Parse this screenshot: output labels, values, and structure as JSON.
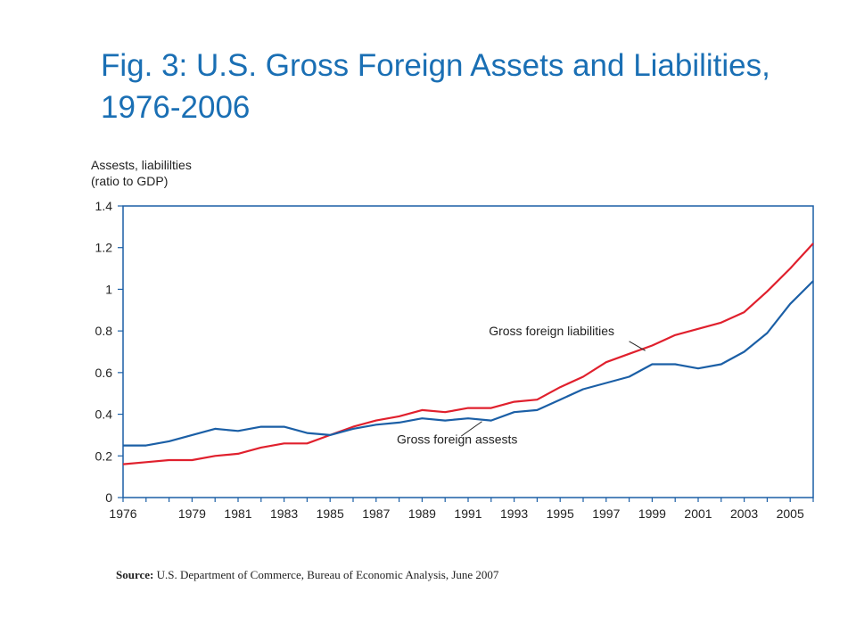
{
  "title": {
    "line1": "Fig. 3: U.S. Gross Foreign Assets and Liabilities,",
    "line2": "1976-2006"
  },
  "colors": {
    "title": "#1a6fb4",
    "assets": "#1b5fa6",
    "liabilities": "#e0202d",
    "frame": "#1b5fa6"
  },
  "source": {
    "label": "Source:",
    "text": "U.S. Department of Commerce, Bureau of Economic Analysis, June 2007"
  },
  "chart_data": {
    "type": "line",
    "ylabel": [
      "Assests, liabililties",
      "(ratio to GDP)"
    ],
    "xlabel": "",
    "xlim": [
      1976,
      2006
    ],
    "ylim": [
      0,
      1.4
    ],
    "x_ticks": [
      1976,
      1979,
      1981,
      1983,
      1985,
      1987,
      1989,
      1991,
      1993,
      1995,
      1997,
      1999,
      2001,
      2003,
      2005
    ],
    "y_ticks": [
      {
        "value": 0,
        "label": "0"
      },
      {
        "value": 0.2,
        "label": "0.2"
      },
      {
        "value": 0.4,
        "label": "0.4"
      },
      {
        "value": 0.6,
        "label": "0.6"
      },
      {
        "value": 0.8,
        "label": "0.8"
      },
      {
        "value": 1.0,
        "label": "1"
      },
      {
        "value": 1.2,
        "label": "1.2"
      },
      {
        "value": 1.4,
        "label": "1.4"
      }
    ],
    "grid": false,
    "series": [
      {
        "name": "Gross foreign liabilities",
        "color": "#e0202d",
        "x": [
          1976,
          1977,
          1978,
          1979,
          1980,
          1981,
          1982,
          1983,
          1984,
          1985,
          1986,
          1987,
          1988,
          1989,
          1990,
          1991,
          1992,
          1993,
          1994,
          1995,
          1996,
          1997,
          1998,
          1999,
          2000,
          2001,
          2002,
          2003,
          2004,
          2005,
          2006
        ],
        "y": [
          0.16,
          0.17,
          0.18,
          0.18,
          0.2,
          0.21,
          0.24,
          0.26,
          0.26,
          0.3,
          0.34,
          0.37,
          0.39,
          0.42,
          0.41,
          0.43,
          0.43,
          0.46,
          0.47,
          0.53,
          0.58,
          0.65,
          0.69,
          0.73,
          0.78,
          0.81,
          0.84,
          0.89,
          0.99,
          1.1,
          1.22
        ]
      },
      {
        "name": "Gross foreign assests",
        "color": "#1b5fa6",
        "x": [
          1976,
          1977,
          1978,
          1979,
          1980,
          1981,
          1982,
          1983,
          1984,
          1985,
          1986,
          1987,
          1988,
          1989,
          1990,
          1991,
          1992,
          1993,
          1994,
          1995,
          1996,
          1997,
          1998,
          1999,
          2000,
          2001,
          2002,
          2003,
          2004,
          2005,
          2006
        ],
        "y": [
          0.25,
          0.25,
          0.27,
          0.3,
          0.33,
          0.32,
          0.34,
          0.34,
          0.31,
          0.3,
          0.33,
          0.35,
          0.36,
          0.38,
          0.37,
          0.38,
          0.37,
          0.41,
          0.42,
          0.47,
          0.52,
          0.55,
          0.58,
          0.64,
          0.64,
          0.62,
          0.64,
          0.7,
          0.79,
          0.93,
          1.04
        ]
      }
    ],
    "annotations": [
      {
        "text": "Gross foreign liabilities",
        "series": 0
      },
      {
        "text": "Gross foreign assests",
        "series": 1
      }
    ]
  }
}
